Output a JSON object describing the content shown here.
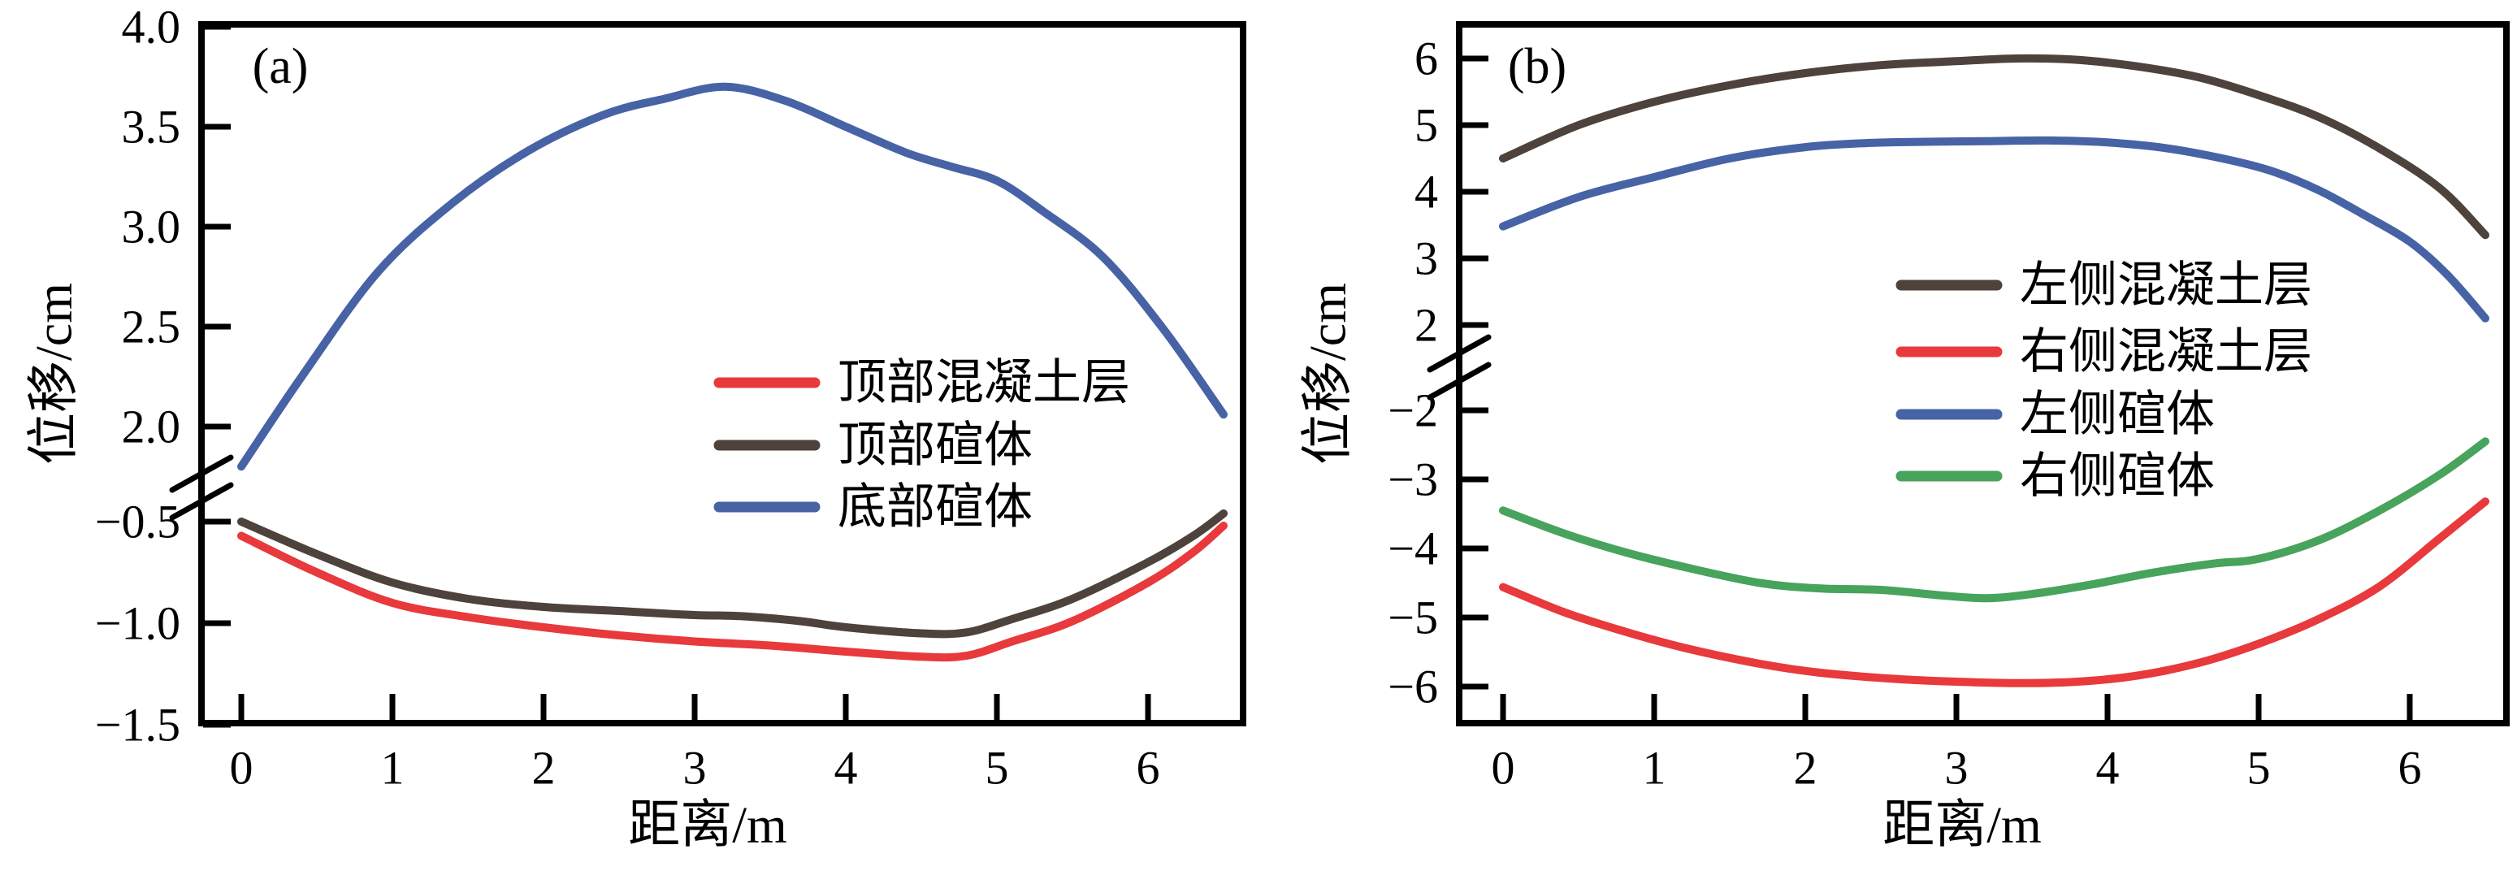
{
  "figure_bg": "#ffffff",
  "axis_color": "#000000",
  "chart_data": [
    {
      "id": "a",
      "type": "line",
      "panel_label": "(a)",
      "xlabel": "距离/m",
      "ylabel": "位移/cm",
      "x_tick_values": [
        0,
        1,
        2,
        3,
        4,
        5,
        6
      ],
      "x_tick_labels": [
        "0",
        "1",
        "2",
        "3",
        "4",
        "5",
        "6"
      ],
      "xlim": [
        -0.26,
        6.63
      ],
      "y_axis_break": {
        "top_range": [
          1.75,
          4.0
        ],
        "bottom_range": [
          -1.5,
          -0.45
        ]
      },
      "y_ticks_top_values": [
        4.0,
        3.5,
        3.0,
        2.5,
        2.0
      ],
      "y_ticks_top_labels": [
        "4.0",
        "3.5",
        "3.0",
        "2.5",
        "2.0"
      ],
      "y_ticks_bottom_values": [
        -0.5,
        -1.0,
        -1.5
      ],
      "y_ticks_bottom_labels": [
        "−0.5",
        "−1.0",
        "−1.5"
      ],
      "legend_position": "center-right",
      "legend": [
        {
          "label": "顶部混凝土层",
          "series": "top-concrete-layer"
        },
        {
          "label": "顶部碹体",
          "series": "top-xuan-body"
        },
        {
          "label": "底部碹体",
          "series": "bottom-xuan-body"
        }
      ],
      "series": [
        {
          "id": "top-concrete-layer",
          "name": "顶部混凝土层",
          "color": "#e8393c",
          "points": [
            [
              0,
              -0.57
            ],
            [
              0.5,
              -0.75
            ],
            [
              1,
              -0.9
            ],
            [
              1.5,
              -0.97
            ],
            [
              2,
              -1.02
            ],
            [
              2.5,
              -1.06
            ],
            [
              3,
              -1.09
            ],
            [
              3.5,
              -1.11
            ],
            [
              4,
              -1.14
            ],
            [
              4.5,
              -1.165
            ],
            [
              4.8,
              -1.16
            ],
            [
              5.1,
              -1.09
            ],
            [
              5.5,
              -0.99
            ],
            [
              6,
              -0.8
            ],
            [
              6.3,
              -0.65
            ],
            [
              6.5,
              -0.52
            ]
          ]
        },
        {
          "id": "top-xuan-body",
          "name": "顶部碹体",
          "color": "#4e423c",
          "points": [
            [
              0,
              -0.5
            ],
            [
              0.5,
              -0.66
            ],
            [
              1,
              -0.8
            ],
            [
              1.5,
              -0.88
            ],
            [
              2,
              -0.92
            ],
            [
              2.5,
              -0.94
            ],
            [
              3,
              -0.96
            ],
            [
              3.3,
              -0.965
            ],
            [
              3.7,
              -0.99
            ],
            [
              4,
              -1.02
            ],
            [
              4.5,
              -1.05
            ],
            [
              4.8,
              -1.045
            ],
            [
              5.1,
              -0.98
            ],
            [
              5.5,
              -0.88
            ],
            [
              6,
              -0.7
            ],
            [
              6.3,
              -0.57
            ],
            [
              6.5,
              -0.46
            ]
          ]
        },
        {
          "id": "bottom-xuan-body",
          "name": "底部碹体",
          "color": "#4763a6",
          "points": [
            [
              0,
              1.8
            ],
            [
              0.4,
              2.25
            ],
            [
              0.9,
              2.77
            ],
            [
              1.4,
              3.12
            ],
            [
              1.9,
              3.38
            ],
            [
              2.4,
              3.56
            ],
            [
              2.8,
              3.64
            ],
            [
              3.2,
              3.7
            ],
            [
              3.6,
              3.63
            ],
            [
              4.0,
              3.5
            ],
            [
              4.4,
              3.37
            ],
            [
              4.7,
              3.3
            ],
            [
              5.0,
              3.23
            ],
            [
              5.3,
              3.08
            ],
            [
              5.7,
              2.85
            ],
            [
              6.1,
              2.49
            ],
            [
              6.5,
              2.06
            ]
          ]
        }
      ]
    },
    {
      "id": "b",
      "type": "line",
      "panel_label": "(b)",
      "xlabel": "距离/m",
      "ylabel": "位移/cm",
      "x_tick_values": [
        0,
        1,
        2,
        3,
        4,
        5,
        6
      ],
      "x_tick_labels": [
        "0",
        "1",
        "2",
        "3",
        "4",
        "5",
        "6"
      ],
      "xlim": [
        -0.29,
        6.64
      ],
      "y_axis_break": {
        "top_range": [
          1.9,
          6.5
        ],
        "bottom_range": [
          -6.5,
          -1.9
        ]
      },
      "y_ticks_top_values": [
        6,
        5,
        4,
        3,
        2
      ],
      "y_ticks_top_labels": [
        "6",
        "5",
        "4",
        "3",
        "2"
      ],
      "y_ticks_bottom_values": [
        -2,
        -3,
        -4,
        -5,
        -6
      ],
      "y_ticks_bottom_labels": [
        "−2",
        "−3",
        "−4",
        "−5",
        "−6"
      ],
      "legend_position": "center-right",
      "legend": [
        {
          "label": "左侧混凝土层",
          "series": "left-concrete-layer"
        },
        {
          "label": "右侧混凝土层",
          "series": "right-concrete-layer"
        },
        {
          "label": "左侧碹体",
          "series": "left-xuan-body"
        },
        {
          "label": "右侧碹体",
          "series": "right-xuan-body"
        }
      ],
      "series": [
        {
          "id": "left-concrete-layer",
          "name": "左侧混凝土层",
          "color": "#4e423c",
          "points": [
            [
              0,
              4.5
            ],
            [
              0.5,
              5.0
            ],
            [
              1,
              5.35
            ],
            [
              1.5,
              5.6
            ],
            [
              2,
              5.78
            ],
            [
              2.5,
              5.9
            ],
            [
              3,
              5.96
            ],
            [
              3.4,
              6.0
            ],
            [
              3.8,
              5.98
            ],
            [
              4.2,
              5.88
            ],
            [
              4.6,
              5.72
            ],
            [
              5,
              5.45
            ],
            [
              5.4,
              5.12
            ],
            [
              5.8,
              4.65
            ],
            [
              6.2,
              4.05
            ],
            [
              6.5,
              3.35
            ]
          ]
        },
        {
          "id": "right-concrete-layer",
          "name": "右侧混凝土层",
          "color": "#e8393c",
          "points": [
            [
              0,
              -4.56
            ],
            [
              0.4,
              -4.92
            ],
            [
              0.8,
              -5.2
            ],
            [
              1.2,
              -5.44
            ],
            [
              1.7,
              -5.67
            ],
            [
              2.1,
              -5.8
            ],
            [
              2.6,
              -5.89
            ],
            [
              3.0,
              -5.93
            ],
            [
              3.4,
              -5.95
            ],
            [
              3.8,
              -5.93
            ],
            [
              4.2,
              -5.84
            ],
            [
              4.6,
              -5.66
            ],
            [
              5.0,
              -5.38
            ],
            [
              5.4,
              -5.02
            ],
            [
              5.8,
              -4.55
            ],
            [
              6.2,
              -3.85
            ],
            [
              6.5,
              -3.32
            ]
          ]
        },
        {
          "id": "left-xuan-body",
          "name": "左侧碹体",
          "color": "#4763a6",
          "points": [
            [
              0,
              3.48
            ],
            [
              0.5,
              3.92
            ],
            [
              1,
              4.22
            ],
            [
              1.5,
              4.5
            ],
            [
              2,
              4.67
            ],
            [
              2.4,
              4.73
            ],
            [
              2.8,
              4.75
            ],
            [
              3.2,
              4.76
            ],
            [
              3.6,
              4.77
            ],
            [
              4,
              4.74
            ],
            [
              4.4,
              4.65
            ],
            [
              4.8,
              4.48
            ],
            [
              5.1,
              4.3
            ],
            [
              5.4,
              4.02
            ],
            [
              5.7,
              3.65
            ],
            [
              6.0,
              3.25
            ],
            [
              6.25,
              2.75
            ],
            [
              6.5,
              2.1
            ]
          ]
        },
        {
          "id": "right-xuan-body",
          "name": "右侧碹体",
          "color": "#48a35d",
          "points": [
            [
              0,
              -3.45
            ],
            [
              0.4,
              -3.78
            ],
            [
              0.8,
              -4.05
            ],
            [
              1.2,
              -4.27
            ],
            [
              1.7,
              -4.5
            ],
            [
              2.1,
              -4.58
            ],
            [
              2.5,
              -4.6
            ],
            [
              2.9,
              -4.68
            ],
            [
              3.2,
              -4.72
            ],
            [
              3.5,
              -4.66
            ],
            [
              3.9,
              -4.52
            ],
            [
              4.3,
              -4.35
            ],
            [
              4.7,
              -4.22
            ],
            [
              5.0,
              -4.15
            ],
            [
              5.4,
              -3.88
            ],
            [
              5.8,
              -3.45
            ],
            [
              6.2,
              -2.93
            ],
            [
              6.5,
              -2.45
            ]
          ]
        }
      ]
    }
  ]
}
